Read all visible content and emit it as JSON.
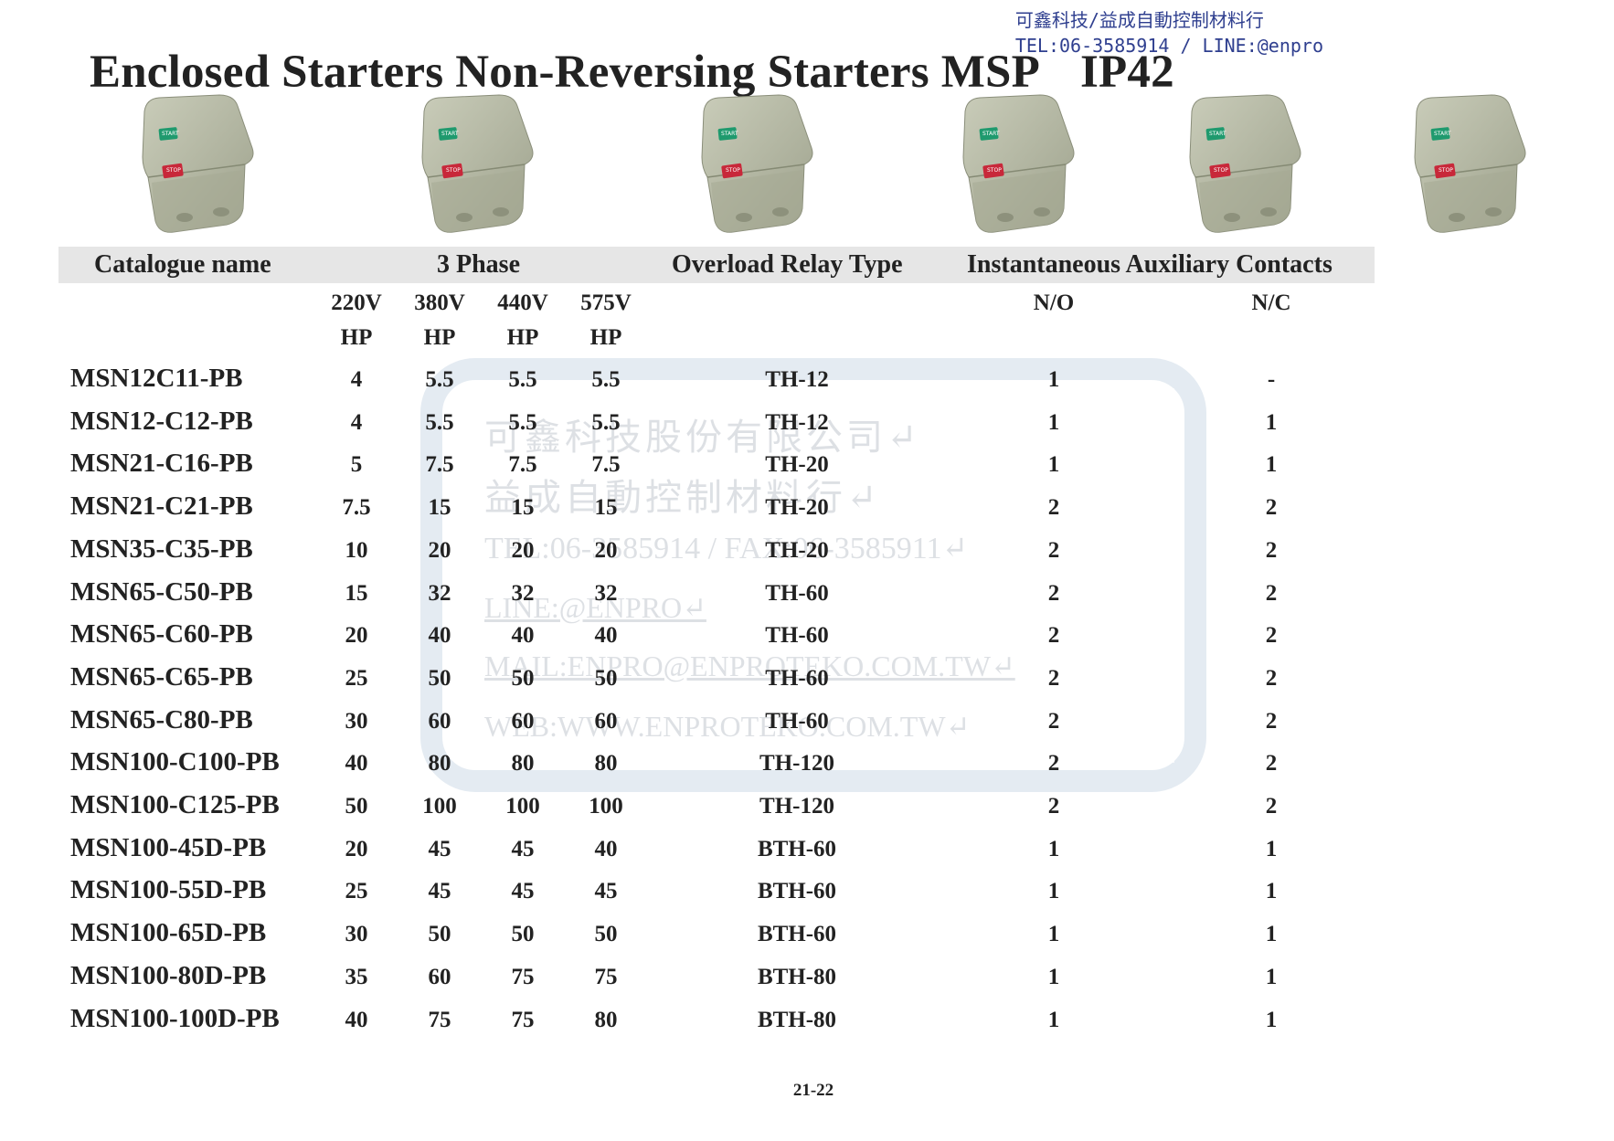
{
  "contact": {
    "company_line": "可鑫科技/益成自動控制材料行",
    "tel_line": "TEL:06-3585914 / LINE:@enpro"
  },
  "title": {
    "text": "Enclosed Starters Non-Reversing Starters MSP",
    "rating": "IP42"
  },
  "product_photos": [
    {
      "start_label": "START",
      "stop_label": "STOP"
    },
    {
      "start_label": "START",
      "stop_label": "STOP"
    },
    {
      "start_label": "START",
      "stop_label": "STOP"
    },
    {
      "start_label": "START",
      "stop_label": "STOP"
    },
    {
      "start_label": "START",
      "stop_label": "STOP"
    },
    {
      "start_label": "START",
      "stop_label": "STOP"
    }
  ],
  "colors": {
    "header_band": "#e6e6e6",
    "body_grey": "#b7bba8",
    "start_green": "#1f9a6e",
    "stop_red": "#c8283a",
    "contact_blue": "#2f3f8f"
  },
  "table": {
    "headers": {
      "catalogue": "Catalogue name",
      "phase": "3 Phase",
      "overload": "Overload Relay Type",
      "aux": "Instantaneous Auxiliary Contacts"
    },
    "voltages": [
      "220V",
      "380V",
      "440V",
      "575V"
    ],
    "hp_unit": "HP",
    "aux_cols": [
      "N/O",
      "N/C"
    ],
    "rows": [
      {
        "name": "MSN12C11-PB",
        "hp220": "4",
        "hp380": "5.5",
        "hp440": "5.5",
        "hp575": "5.5",
        "relay": "TH-12",
        "no": "1",
        "nc": "-"
      },
      {
        "name": "MSN12-C12-PB",
        "hp220": "4",
        "hp380": "5.5",
        "hp440": "5.5",
        "hp575": "5.5",
        "relay": "TH-12",
        "no": "1",
        "nc": "1"
      },
      {
        "name": "MSN21-C16-PB",
        "hp220": "5",
        "hp380": "7.5",
        "hp440": "7.5",
        "hp575": "7.5",
        "relay": "TH-20",
        "no": "1",
        "nc": "1"
      },
      {
        "name": "MSN21-C21-PB",
        "hp220": "7.5",
        "hp380": "15",
        "hp440": "15",
        "hp575": "15",
        "relay": "TH-20",
        "no": "2",
        "nc": "2"
      },
      {
        "name": "MSN35-C35-PB",
        "hp220": "10",
        "hp380": "20",
        "hp440": "20",
        "hp575": "20",
        "relay": "TH-20",
        "no": "2",
        "nc": "2"
      },
      {
        "name": "MSN65-C50-PB",
        "hp220": "15",
        "hp380": "32",
        "hp440": "32",
        "hp575": "32",
        "relay": "TH-60",
        "no": "2",
        "nc": "2"
      },
      {
        "name": "MSN65-C60-PB",
        "hp220": "20",
        "hp380": "40",
        "hp440": "40",
        "hp575": "40",
        "relay": "TH-60",
        "no": "2",
        "nc": "2"
      },
      {
        "name": "MSN65-C65-PB",
        "hp220": "25",
        "hp380": "50",
        "hp440": "50",
        "hp575": "50",
        "relay": "TH-60",
        "no": "2",
        "nc": "2"
      },
      {
        "name": "MSN65-C80-PB",
        "hp220": "30",
        "hp380": "60",
        "hp440": "60",
        "hp575": "60",
        "relay": "TH-60",
        "no": "2",
        "nc": "2"
      },
      {
        "name": "MSN100-C100-PB",
        "hp220": "40",
        "hp380": "80",
        "hp440": "80",
        "hp575": "80",
        "relay": "TH-120",
        "no": "2",
        "nc": "2"
      },
      {
        "name": "MSN100-C125-PB",
        "hp220": "50",
        "hp380": "100",
        "hp440": "100",
        "hp575": "100",
        "relay": "TH-120",
        "no": "2",
        "nc": "2"
      },
      {
        "name": "MSN100-45D-PB",
        "hp220": "20",
        "hp380": "45",
        "hp440": "45",
        "hp575": "40",
        "relay": "BTH-60",
        "no": "1",
        "nc": "1"
      },
      {
        "name": "MSN100-55D-PB",
        "hp220": "25",
        "hp380": "45",
        "hp440": "45",
        "hp575": "45",
        "relay": "BTH-60",
        "no": "1",
        "nc": "1"
      },
      {
        "name": "MSN100-65D-PB",
        "hp220": "30",
        "hp380": "50",
        "hp440": "50",
        "hp575": "50",
        "relay": "BTH-60",
        "no": "1",
        "nc": "1"
      },
      {
        "name": "MSN100-80D-PB",
        "hp220": "35",
        "hp380": "60",
        "hp440": "75",
        "hp575": "75",
        "relay": "BTH-80",
        "no": "1",
        "nc": "1"
      },
      {
        "name": "MSN100-100D-PB",
        "hp220": "40",
        "hp380": "75",
        "hp440": "75",
        "hp575": "80",
        "relay": "BTH-80",
        "no": "1",
        "nc": "1"
      }
    ]
  },
  "watermark": {
    "lines": [
      "可鑫科技股份有限公司↵",
      "益成自動控制材料行↵",
      "TEL:06-3585914 / FAX:06-3585911↵",
      "LINE:@ENPRO↵",
      "MAIL:ENPRO@ENPROTEKO.COM.TW↵",
      "WEB:WWW.ENPROTEKO.COM.TW↵"
    ]
  },
  "page_number": "21-22"
}
